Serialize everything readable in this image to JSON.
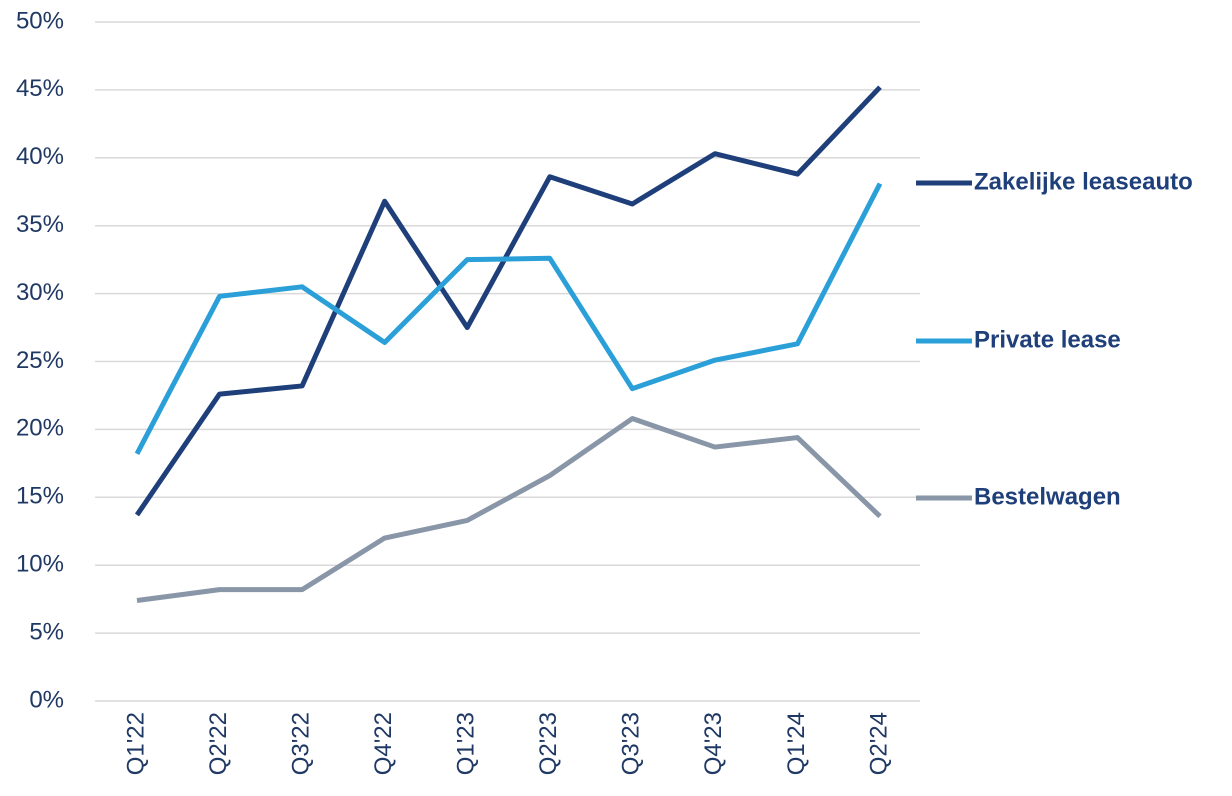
{
  "chart_data": {
    "type": "line",
    "categories": [
      "Q1'22",
      "Q2'22",
      "Q3'22",
      "Q4'22",
      "Q1'23",
      "Q2'23",
      "Q3'23",
      "Q4'23",
      "Q1'24",
      "Q2'24"
    ],
    "series": [
      {
        "name": "Zakelijke leaseauto",
        "color": "#1f3f7a",
        "values": [
          13.7,
          22.6,
          23.2,
          36.8,
          27.5,
          38.6,
          36.6,
          40.3,
          38.8,
          45.2
        ]
      },
      {
        "name": "Private lease",
        "color": "#2a9fd8",
        "values": [
          18.2,
          29.8,
          30.5,
          26.4,
          32.5,
          32.6,
          23.0,
          25.1,
          26.3,
          38.1
        ]
      },
      {
        "name": "Bestelwagen",
        "color": "#8896a8",
        "values": [
          7.4,
          8.2,
          8.2,
          12.0,
          13.3,
          16.6,
          20.8,
          18.7,
          19.4,
          13.6
        ]
      }
    ],
    "ylim": [
      0,
      50
    ],
    "yticks": [
      {
        "value": 0,
        "label": "0%"
      },
      {
        "value": 5,
        "label": "5%"
      },
      {
        "value": 10,
        "label": "10%"
      },
      {
        "value": 15,
        "label": "15%"
      },
      {
        "value": 20,
        "label": "20%"
      },
      {
        "value": 25,
        "label": "25%"
      },
      {
        "value": 30,
        "label": "30%"
      },
      {
        "value": 35,
        "label": "35%"
      },
      {
        "value": 40,
        "label": "40%"
      },
      {
        "value": 45,
        "label": "45%"
      },
      {
        "value": 50,
        "label": "50%"
      }
    ],
    "grid": true
  }
}
